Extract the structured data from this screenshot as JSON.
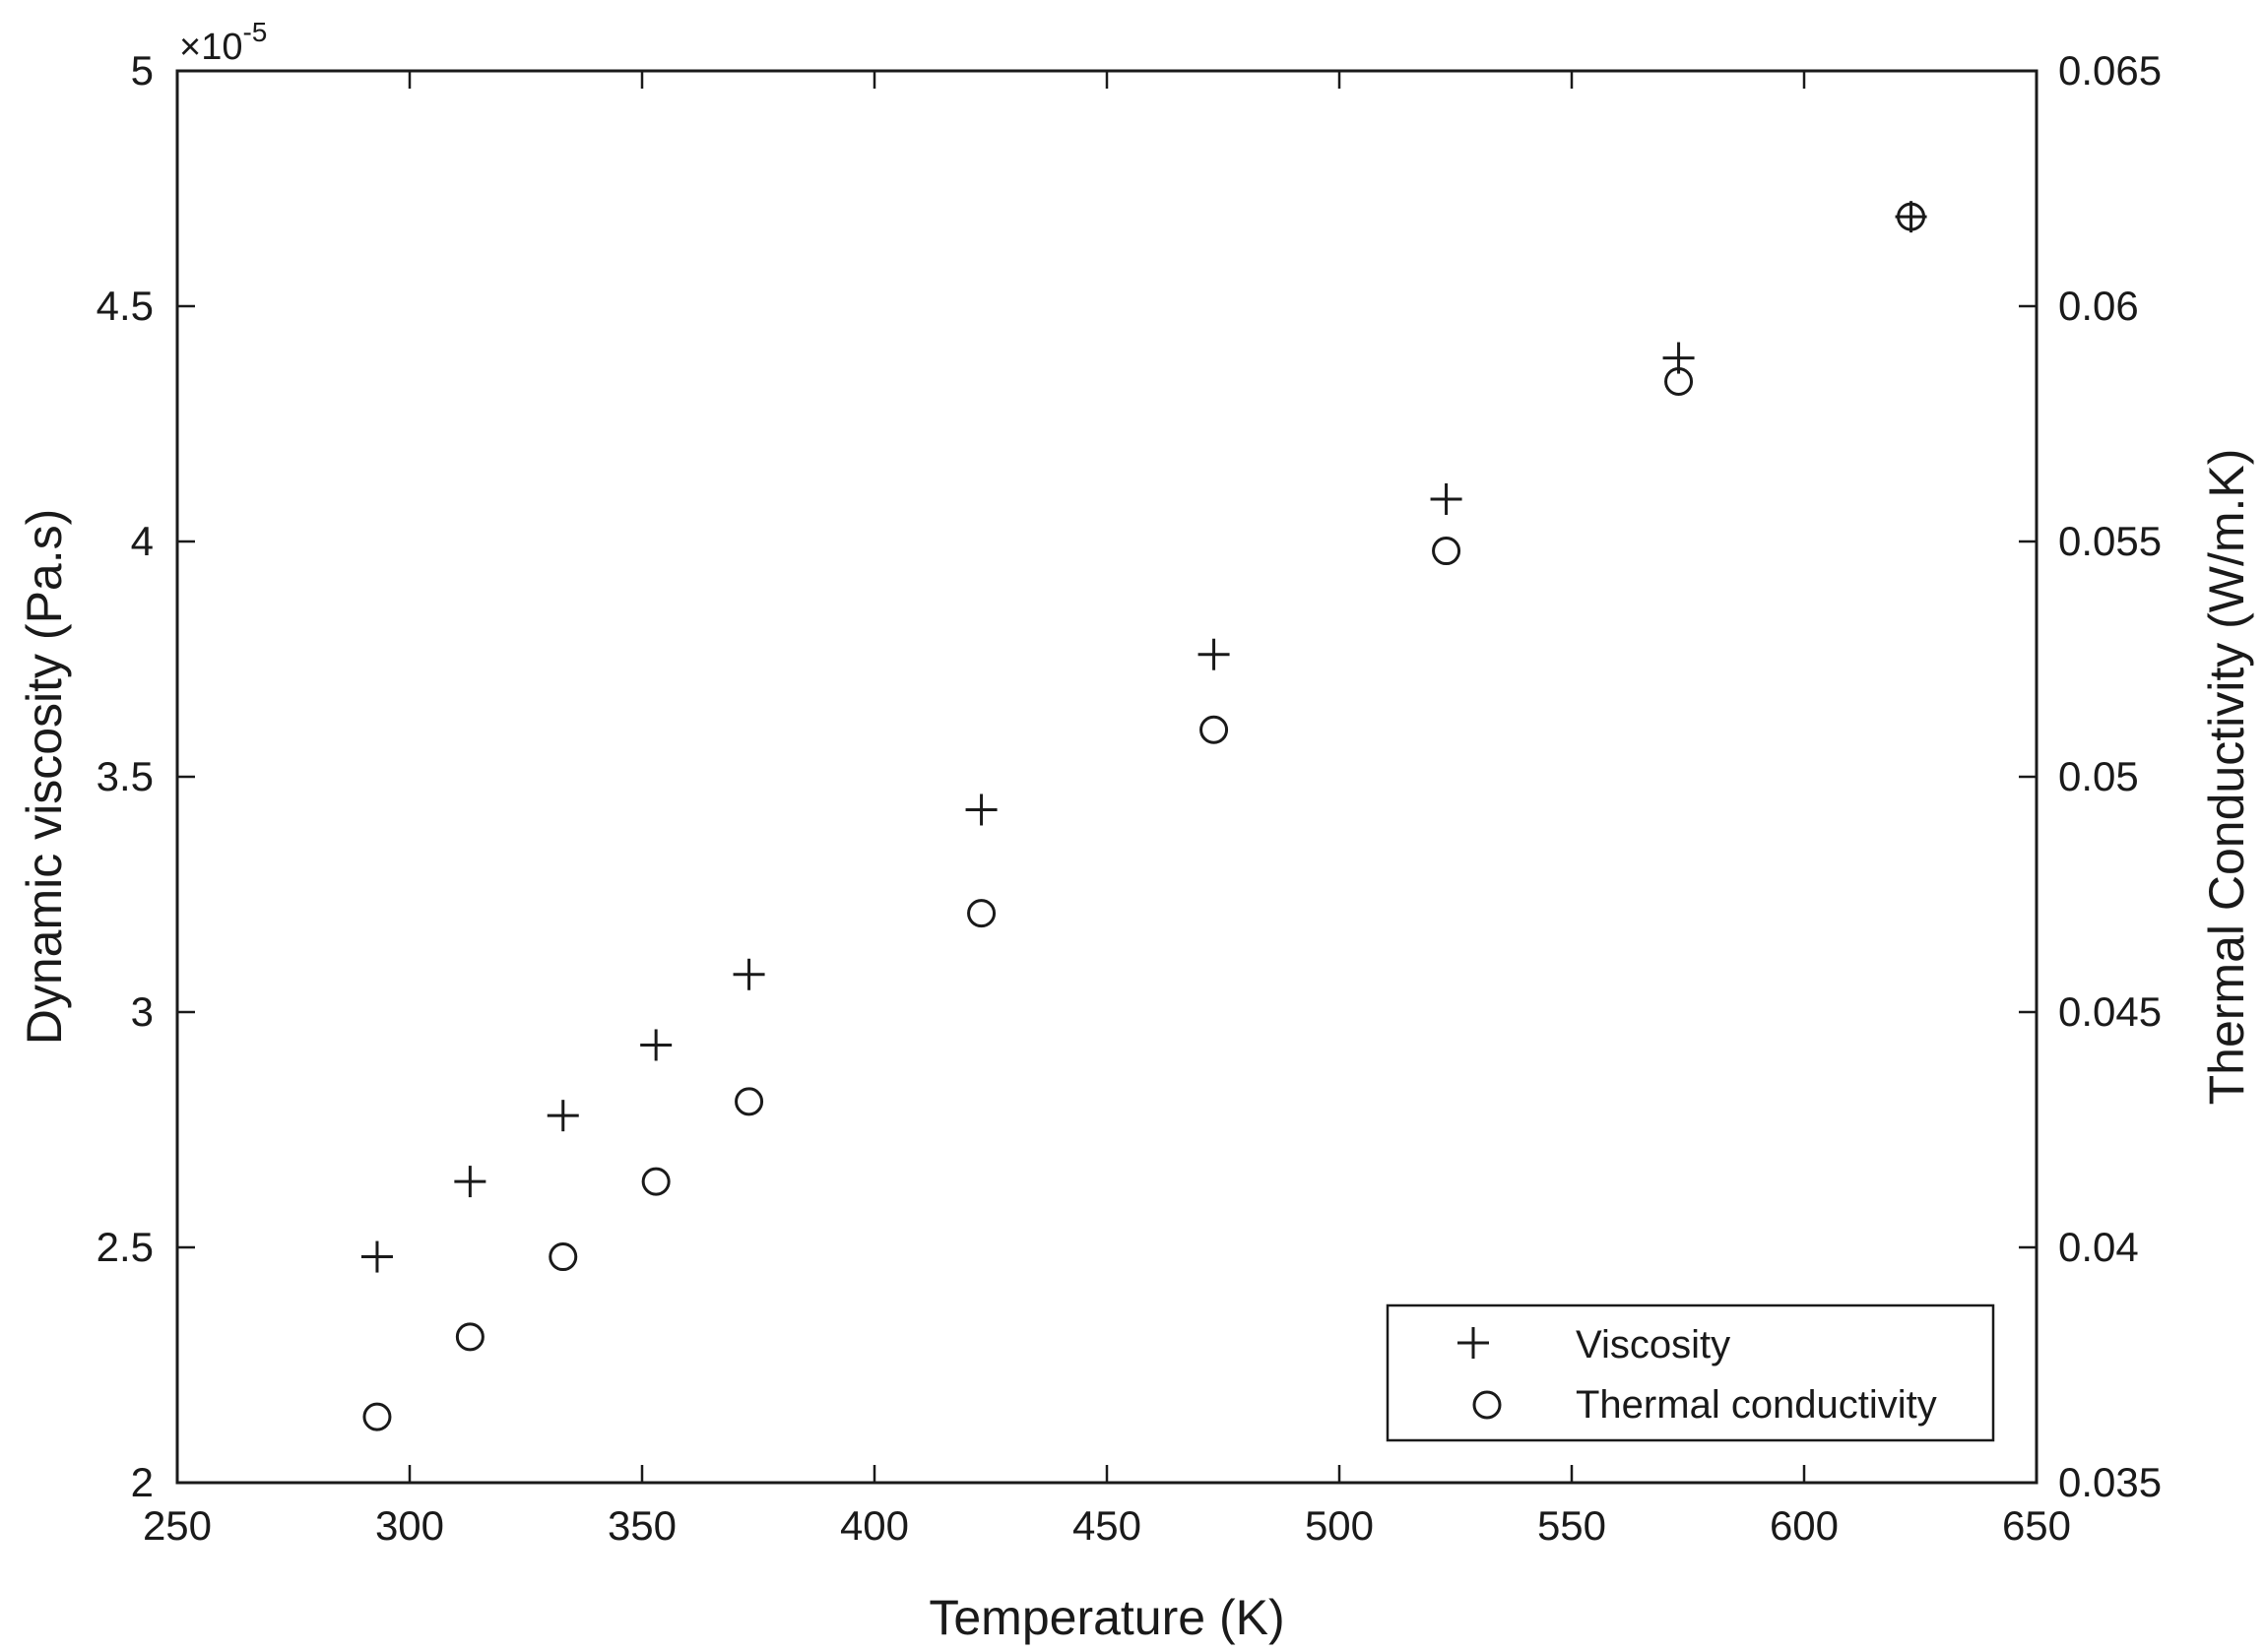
{
  "chart_data": {
    "type": "scatter",
    "xlabel": "Temperature (K)",
    "ylabel": "Dynamic viscosity (Pa.s)",
    "y2label": "Thermal Conductivity (W/m.K)",
    "y_exponent_label": "×10",
    "y_exponent_power": "-5",
    "xlim": [
      250,
      650
    ],
    "ylim": [
      2,
      5
    ],
    "y2lim": [
      0.035,
      0.065
    ],
    "x_ticks": [
      "250",
      "300",
      "350",
      "400",
      "450",
      "500",
      "550",
      "600",
      "650"
    ],
    "y_ticks": [
      "2",
      "2.5",
      "3",
      "3.5",
      "4",
      "4.5",
      "5"
    ],
    "y2_ticks": [
      "0.035",
      "0.04",
      "0.045",
      "0.05",
      "0.055",
      "0.06",
      "0.065"
    ],
    "grid": false,
    "legend_position": "bottom-right",
    "series": [
      {
        "name": "Viscosity",
        "marker": "plus",
        "axis": "left",
        "x": [
          293,
          313,
          333,
          353,
          373,
          423,
          473,
          523,
          573,
          623
        ],
        "y": [
          2.48,
          2.64,
          2.78,
          2.93,
          3.08,
          3.43,
          3.76,
          4.09,
          4.39,
          4.69
        ]
      },
      {
        "name": "Thermal conductivity",
        "marker": "circle",
        "axis": "right",
        "x": [
          293,
          313,
          333,
          353,
          373,
          423,
          473,
          523,
          573,
          623
        ],
        "y": [
          0.0364,
          0.0381,
          0.0398,
          0.0414,
          0.0431,
          0.0471,
          0.051,
          0.0548,
          0.0584,
          0.0619
        ]
      }
    ]
  },
  "colors": {
    "axis": "#1a1a1a",
    "marker": "#1a1a1a",
    "background": "#ffffff"
  }
}
